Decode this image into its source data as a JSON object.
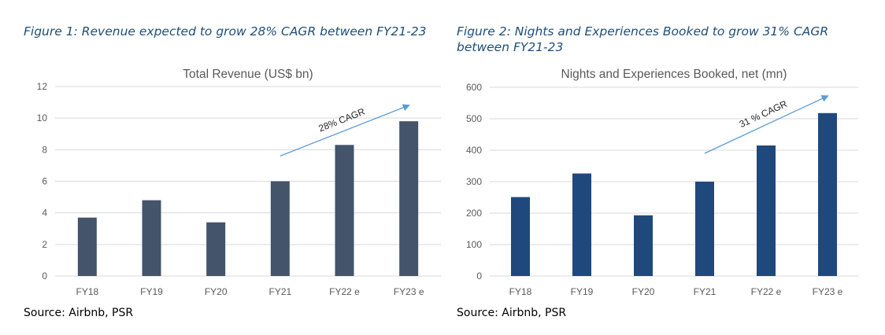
{
  "figures": [
    {
      "caption": "Figure 1: Revenue expected to grow 28% CAGR between FY21-23",
      "source": "Source: Airbnb, PSR"
    },
    {
      "caption": "Figure 2: Nights and Experiences Booked to grow 31% CAGR between FY21-23",
      "source": "Source: Airbnb, PSR"
    }
  ],
  "chart_data": [
    {
      "type": "bar",
      "title": "Total Revenue (US$ bn)",
      "categories": [
        "FY18",
        "FY19",
        "FY20",
        "FY21",
        "FY22 e",
        "FY23 e"
      ],
      "values": [
        3.7,
        4.8,
        3.4,
        6.0,
        8.3,
        9.8
      ],
      "yticks": [
        0,
        2,
        4,
        6,
        8,
        10,
        12
      ],
      "ylim": [
        0,
        12
      ],
      "grid": true,
      "bar_color": "#44546a",
      "annotation": {
        "text": "28% CAGR",
        "from": [
          3,
          7.6
        ],
        "to": [
          5,
          10.8
        ]
      },
      "xlabel": "",
      "ylabel": ""
    },
    {
      "type": "bar",
      "title": "Nights and Experiences Booked,  net (mn)",
      "categories": [
        "FY18",
        "FY19",
        "FY20",
        "FY21",
        "FY22 e",
        "FY23 e"
      ],
      "values": [
        251,
        326,
        193,
        300,
        415,
        518
      ],
      "yticks": [
        0,
        100,
        200,
        300,
        400,
        500,
        600
      ],
      "ylim": [
        0,
        600
      ],
      "grid": true,
      "bar_color": "#1f497d",
      "annotation": {
        "text": "31 % CAGR",
        "from": [
          3,
          390
        ],
        "to": [
          5,
          572
        ]
      },
      "xlabel": "",
      "ylabel": ""
    }
  ]
}
